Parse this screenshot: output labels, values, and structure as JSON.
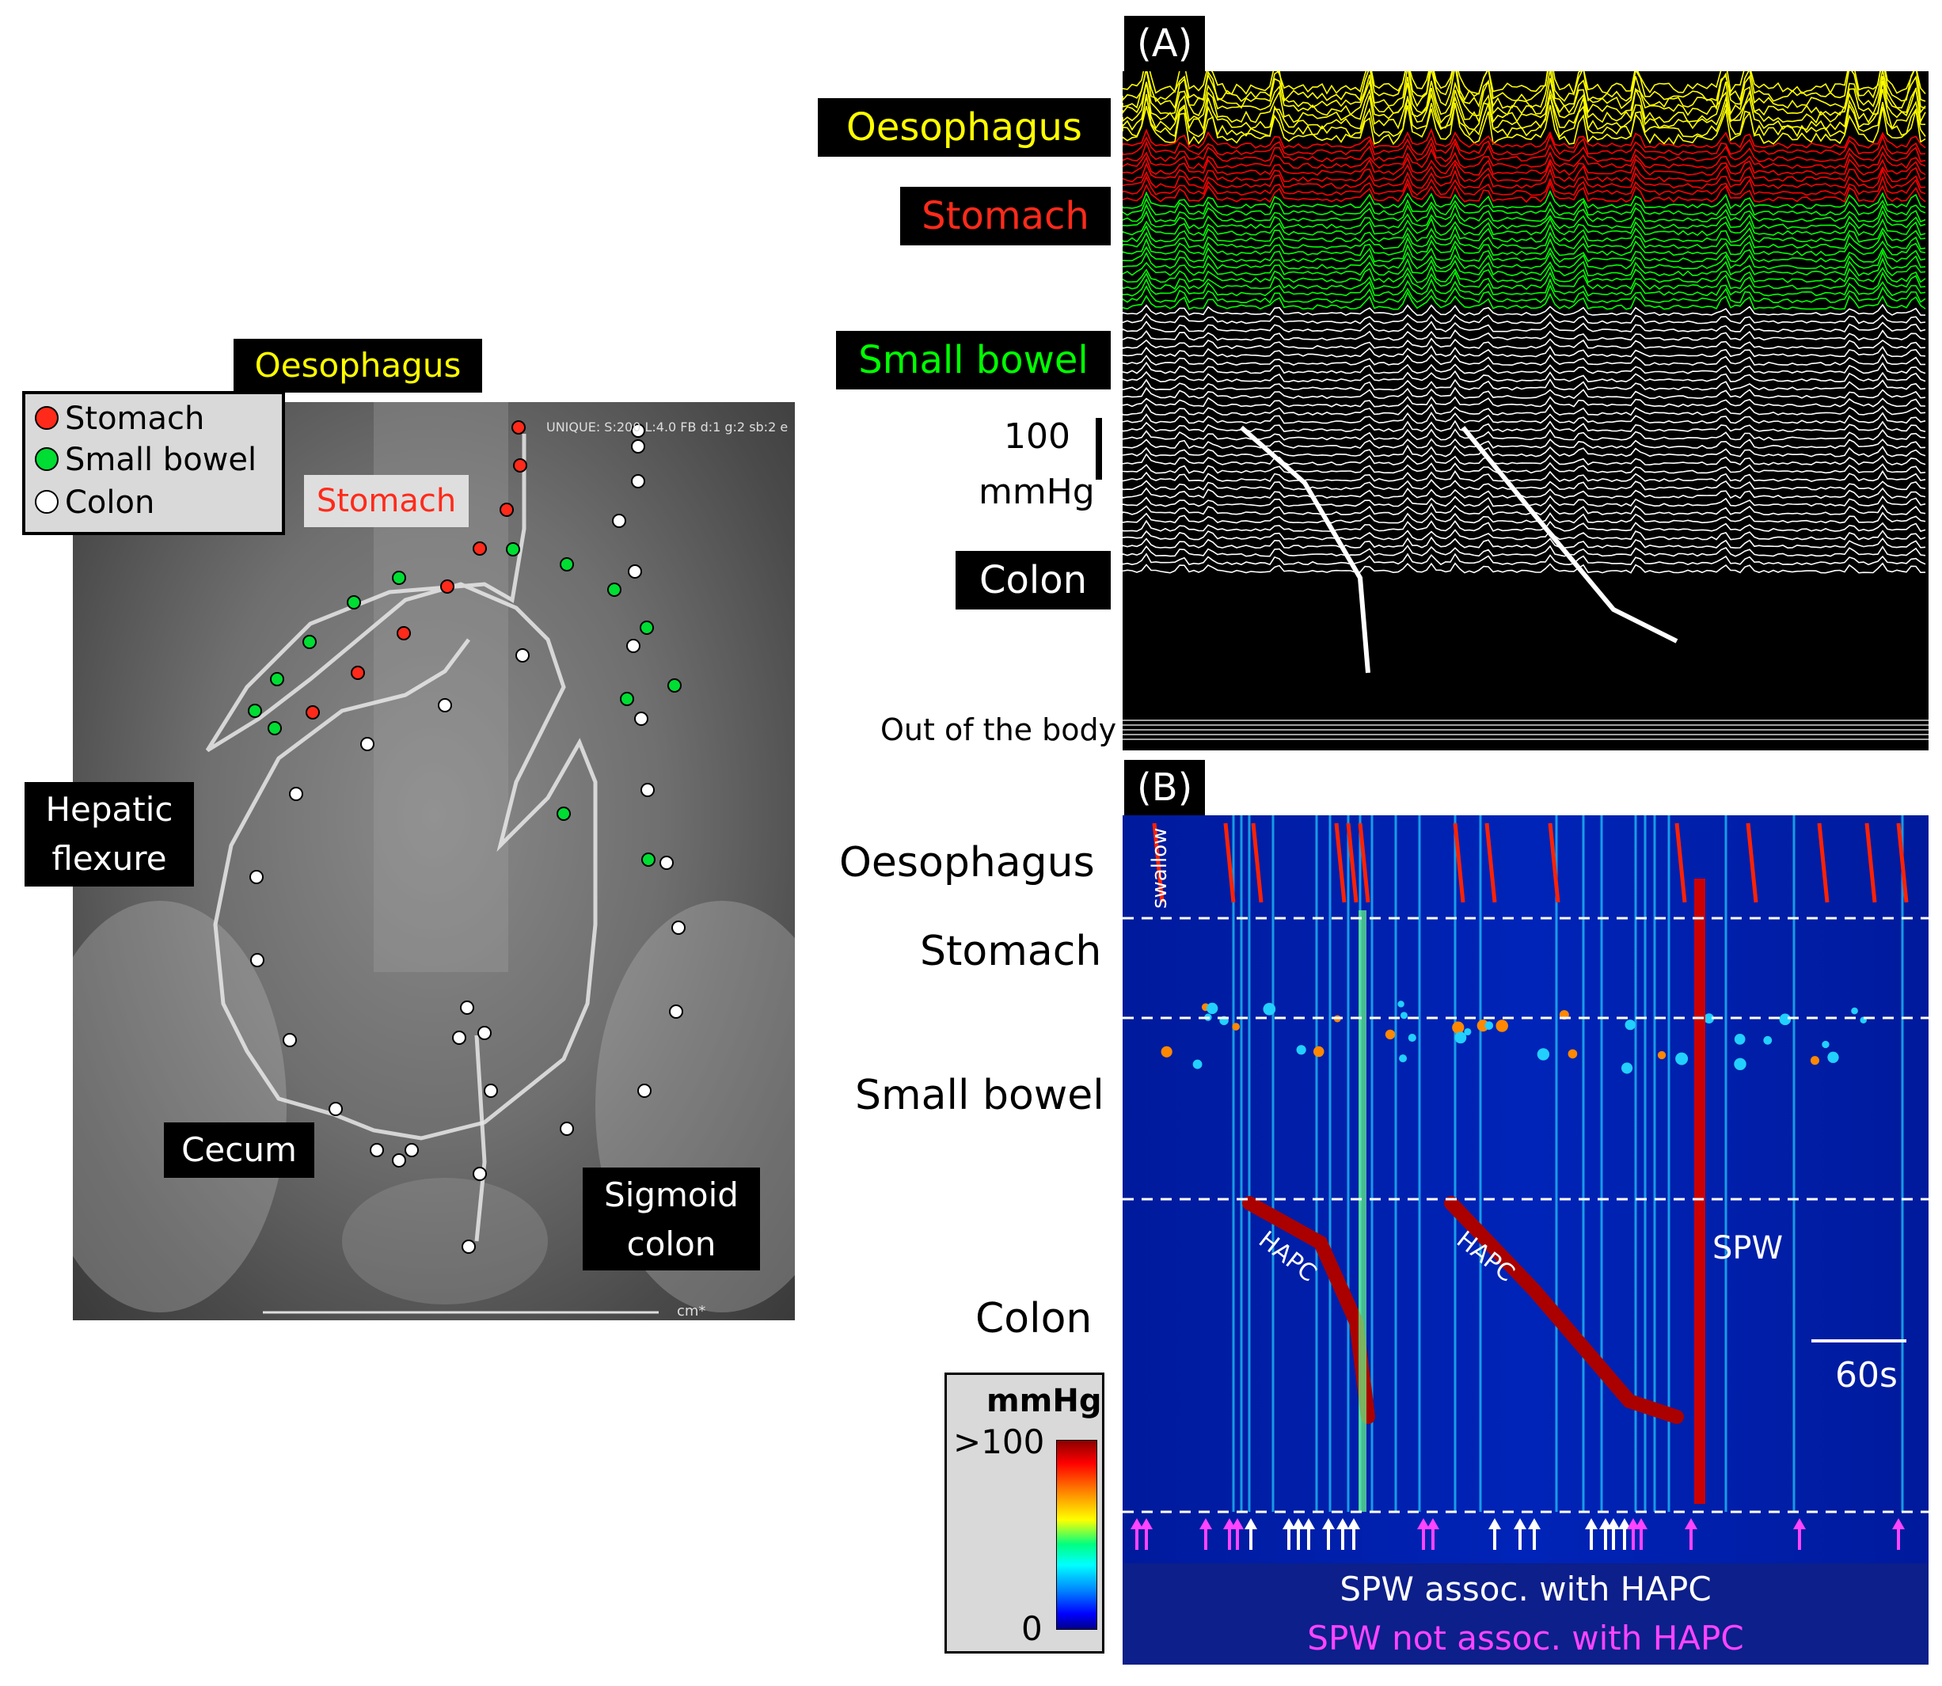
{
  "xray": {
    "top_label": "Oesophagus",
    "stomach_label": "Stomach",
    "hepatic_label_line1": "Hepatic",
    "hepatic_label_line2": "flexure",
    "cecum_label": "Cecum",
    "sigmoid_label_line1": "Sigmoid",
    "sigmoid_label_line2": "colon",
    "scale_unit": "cm*",
    "header_text": "UNIQUE: S:200 L:4.0 FB d:1 g:2 sb:2 e",
    "legend": [
      {
        "label": "Stomach",
        "color": "#ff2a1a"
      },
      {
        "label": "Small bowel",
        "color": "#00dd33"
      },
      {
        "label": "Colon",
        "color": "#ffffff"
      }
    ]
  },
  "panel_a": {
    "tag": "(A)",
    "labels": {
      "oesophagus": "Oesophagus",
      "stomach": "Stomach",
      "small_bowel": "Small bowel",
      "colon": "Colon",
      "out_of_body": "Out of the body"
    },
    "scale_value": "100",
    "scale_unit": "mmHg",
    "colors": {
      "oesophagus": "#ffff00",
      "stomach": "#ff0000",
      "small_bowel": "#00ff00",
      "colon": "#ffffff"
    }
  },
  "panel_b": {
    "tag": "(B)",
    "labels": {
      "oesophagus": "Oesophagus",
      "stomach": "Stomach",
      "small_bowel": "Small bowel",
      "colon": "Colon"
    },
    "annotations": {
      "swallow": "swallow",
      "hapc1": "HAPC",
      "hapc2": "HAPC",
      "spw": "SPW",
      "time_scale": "60s"
    },
    "colorbar": {
      "unit": "mmHg",
      "max": ">100",
      "min": "0"
    },
    "legend_white": "SPW assoc. with HAPC",
    "legend_magenta": "SPW not assoc. with HAPC",
    "colors": {
      "white_arrow": "#ffffff",
      "magenta_arrow": "#ff44ff"
    }
  }
}
